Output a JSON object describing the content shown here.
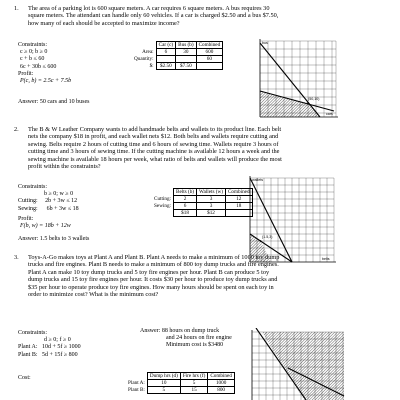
{
  "problems": [
    {
      "number": "1.",
      "text": [
        "The area of a parking lot is 600 square meters. A car requires 6 square meters. A bus requires 30",
        "square meters. The attendant can handle only 60 vehicles. If a car is charged $2.50 and a bus $7.50,",
        "how many of each should be accepted to maximize income?"
      ],
      "constraints_label": "Constraints:",
      "constraints": [
        "c ≥ 0;  b ≥ 0",
        "c + b ≤ 60",
        "6c + 30b ≤ 600"
      ],
      "profit_label": "Profit:",
      "profit": "P(c, b) = 2.5c + 7.5b",
      "answer": "Answer:  50 cars and 10 buses",
      "table": {
        "headers": [
          "",
          "Car (c)",
          "Bus (b)",
          "Combined"
        ],
        "rows": [
          [
            "Area:",
            "6",
            "30",
            "600"
          ],
          [
            "Quantity:",
            "",
            "",
            "60"
          ],
          [
            "$:",
            "$2.50",
            "$7.50",
            ""
          ]
        ]
      },
      "graph_labels": {
        "y": "bus",
        "x": "cars",
        "point": "(50,10)"
      }
    },
    {
      "number": "2.",
      "text": [
        "The B & W Leather Company wants to add handmade belts and wallets to its product line. Each belt",
        "nets the company $18 in profit, and each wallet nets $12. Both belts and wallets require cutting and",
        "sewing. Belts require 2 hours of cutting time and 6 hours of sewing time. Wallets require 3 hours of",
        "cutting time and 3 hours of sewing time. If the cutting machine is available 12 hours a week and the",
        "sewing machine is available 18 hours per week, what ratio of belts and wallets will produce the most",
        "profit within the constraints?"
      ],
      "constraints_label": "Constraints:",
      "constraints": [
        "b ≥ 0;  w ≥ 0",
        "Cutting:     2b + 3w ≤ 12",
        "Sewing:      6b + 3w ≤ 18"
      ],
      "profit_label": "Profit:",
      "profit": "F(b, w) = 18b + 12w",
      "answer": "Answer:  1.5 belts to 3 wallets",
      "table": {
        "headers": [
          "",
          "Belts (b)",
          "Wallets (w)",
          "Combined"
        ],
        "rows": [
          [
            "Cutting:",
            "2",
            "3",
            "12"
          ],
          [
            "Sewing:",
            "6",
            "3",
            "18"
          ],
          [
            "",
            "$18",
            "$12",
            ""
          ]
        ]
      },
      "graph_labels": {
        "y": "wallets",
        "x": "belts",
        "point": "(1.5,3)"
      }
    },
    {
      "number": "3.",
      "text": [
        "Toys-A-Go makes toys at Plant A and Plant B. Plant A needs to make a minimum of 1000 toy dump",
        "trucks and fire engines. Plant B needs to make a minimum of 800 toy dump trucks and fire engines.",
        "Plant A can make 10 toy dump trucks and 5 toy fire engines per hour. Plant B can produce 5 toy",
        "dump trucks and 15 toy fire engines per hour. It costs $30 per hour to produce toy dump trucks and",
        "$35 per hour to operate produce toy fire engines. How many hours should be spent on each toy in",
        "order to minimize cost?  What is the minimum cost?"
      ],
      "answer_lines": [
        "Answer: 88 hours on dump truck",
        "and 24 hours on fire engine",
        "Minimum cost is $3480"
      ],
      "constraints_label": "Constraints:",
      "constraints": [
        "d ≥ 0;  f ≥ 0",
        "Plant A:   10d + 5f ≥ 1000",
        "Plant B:   5d + 15f ≥ 800"
      ],
      "cost_label": "Cost:",
      "table": {
        "headers": [
          "",
          "Dump hrs (d)",
          "Fire hrs (f)",
          "Combined"
        ],
        "rows": [
          [
            "Plant A:",
            "10",
            "5",
            "1000"
          ],
          [
            "Plant B:",
            "5",
            "15",
            "800"
          ]
        ]
      }
    }
  ]
}
